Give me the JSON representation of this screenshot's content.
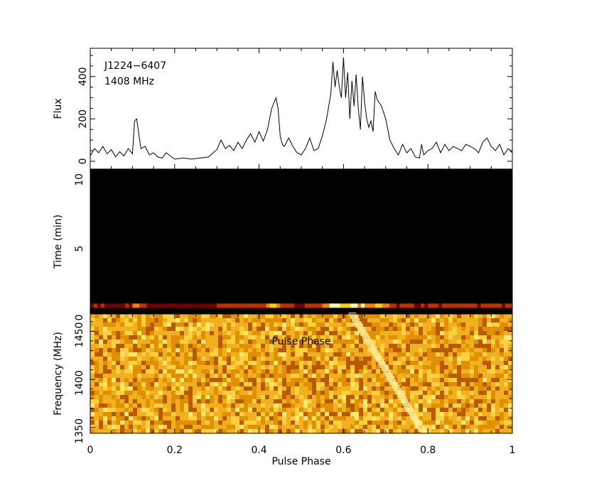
{
  "chart_data": [
    {
      "type": "line",
      "panel": "profile",
      "annotations": [
        "J1224−6407",
        "1408 MHz"
      ],
      "ylabel": "Flux",
      "xlim": [
        0,
        1
      ],
      "ylim": [
        0,
        500
      ],
      "yticks": [
        "0",
        "200",
        "400"
      ],
      "grid": false,
      "x": [
        0.0,
        0.01,
        0.02,
        0.03,
        0.04,
        0.05,
        0.06,
        0.07,
        0.08,
        0.09,
        0.1,
        0.105,
        0.11,
        0.115,
        0.12,
        0.13,
        0.14,
        0.15,
        0.16,
        0.17,
        0.18,
        0.19,
        0.2,
        0.22,
        0.24,
        0.26,
        0.28,
        0.3,
        0.31,
        0.32,
        0.33,
        0.34,
        0.35,
        0.36,
        0.37,
        0.38,
        0.39,
        0.4,
        0.41,
        0.42,
        0.425,
        0.43,
        0.44,
        0.445,
        0.45,
        0.455,
        0.46,
        0.47,
        0.48,
        0.49,
        0.5,
        0.51,
        0.52,
        0.53,
        0.54,
        0.55,
        0.56,
        0.57,
        0.575,
        0.58,
        0.585,
        0.59,
        0.595,
        0.6,
        0.605,
        0.61,
        0.615,
        0.62,
        0.625,
        0.63,
        0.635,
        0.64,
        0.645,
        0.65,
        0.655,
        0.66,
        0.665,
        0.67,
        0.675,
        0.68,
        0.69,
        0.7,
        0.71,
        0.72,
        0.73,
        0.74,
        0.75,
        0.76,
        0.77,
        0.78,
        0.785,
        0.79,
        0.8,
        0.81,
        0.82,
        0.83,
        0.84,
        0.85,
        0.86,
        0.87,
        0.88,
        0.89,
        0.9,
        0.91,
        0.92,
        0.93,
        0.94,
        0.95,
        0.96,
        0.97,
        0.98,
        0.99,
        1.0
      ],
      "y": [
        25,
        60,
        40,
        70,
        35,
        55,
        20,
        45,
        25,
        60,
        35,
        190,
        200,
        130,
        60,
        70,
        30,
        40,
        20,
        15,
        40,
        25,
        10,
        15,
        10,
        15,
        20,
        55,
        100,
        60,
        75,
        50,
        90,
        60,
        100,
        130,
        90,
        140,
        95,
        150,
        200,
        250,
        300,
        250,
        120,
        80,
        70,
        110,
        70,
        40,
        30,
        60,
        110,
        50,
        60,
        120,
        200,
        320,
        470,
        350,
        430,
        350,
        300,
        490,
        300,
        420,
        200,
        380,
        260,
        410,
        250,
        150,
        400,
        280,
        200,
        160,
        190,
        140,
        330,
        290,
        260,
        200,
        100,
        60,
        30,
        80,
        40,
        60,
        20,
        15,
        80,
        30,
        50,
        60,
        90,
        40,
        80,
        50,
        70,
        60,
        50,
        80,
        70,
        60,
        40,
        90,
        110,
        70,
        50,
        80,
        30,
        60,
        40
      ]
    },
    {
      "type": "heatmap",
      "panel": "time-phase",
      "ylabel": "Time (min)",
      "xlim": [
        0,
        1
      ],
      "ylim": [
        0,
        10
      ],
      "yticks": [
        "0",
        "5",
        "10"
      ],
      "active_row_time_min": 0.6,
      "colormap": [
        "#000000",
        "#6a0000",
        "#c03000",
        "#f08000",
        "#ffd000",
        "#ffffb0"
      ]
    },
    {
      "type": "heatmap",
      "panel": "frequency-phase",
      "annotation": "Pulse Phase",
      "ylabel": "Frequency (MHz)",
      "xlabel": "Pulse Phase",
      "xlim": [
        0,
        1
      ],
      "ylim": [
        1344,
        1468
      ],
      "yticks": [
        "1350",
        "1400",
        "1450"
      ],
      "xticks": [
        "0",
        "0.2",
        "0.4",
        "0.6",
        "0.8",
        "1"
      ],
      "dispersed_pulse": {
        "phase_at_1468_MHz": 0.62,
        "phase_at_1344_MHz": 0.79
      },
      "colormap": [
        "#b85a00",
        "#e09000",
        "#f0b020",
        "#ffd040",
        "#ffe870"
      ]
    }
  ]
}
